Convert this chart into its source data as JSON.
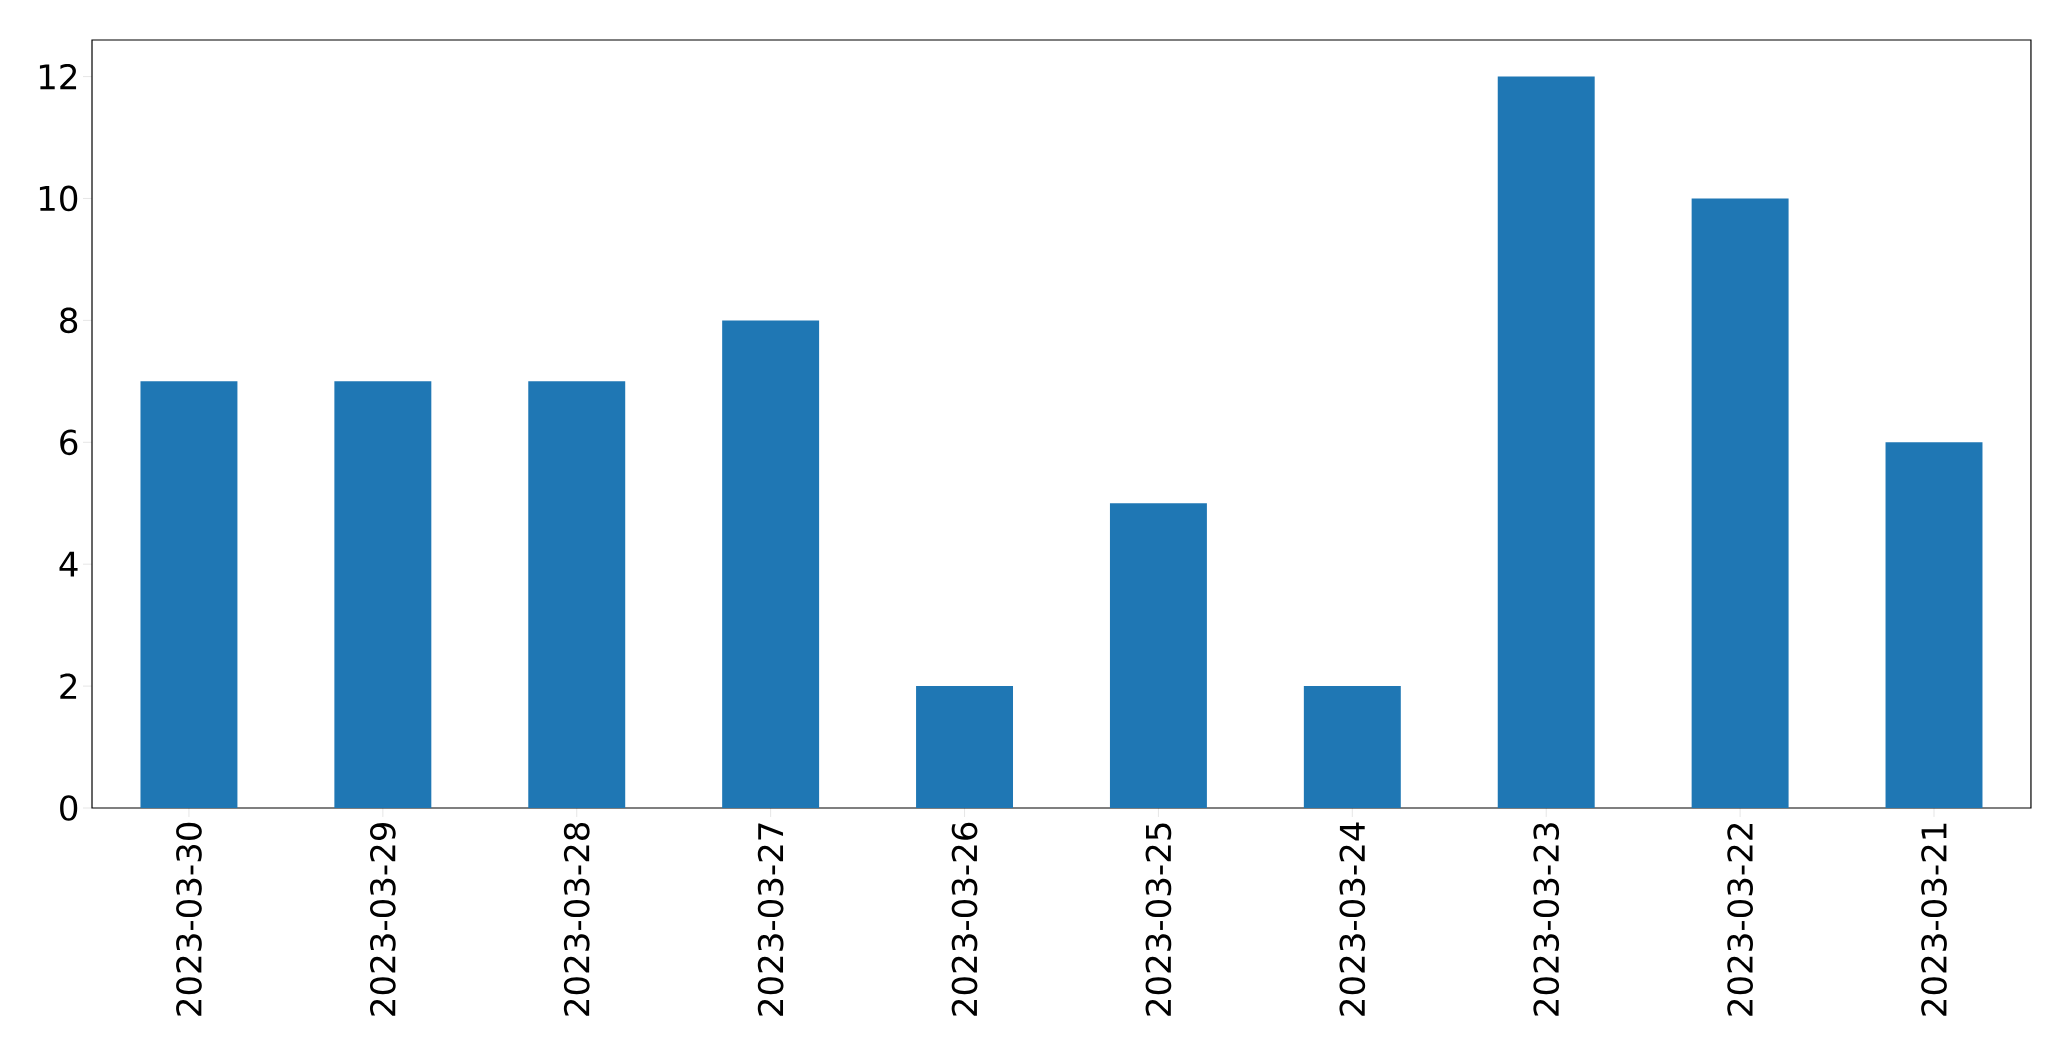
{
  "chart_data": {
    "type": "bar",
    "categories": [
      "2023-03-30",
      "2023-03-29",
      "2023-03-28",
      "2023-03-27",
      "2023-03-26",
      "2023-03-25",
      "2023-03-24",
      "2023-03-23",
      "2023-03-22",
      "2023-03-21"
    ],
    "values": [
      7,
      7,
      7,
      8,
      2,
      5,
      2,
      12,
      10,
      6
    ],
    "color": "#1f77b4",
    "ylim": [
      0,
      12.6
    ],
    "yticks": [
      0,
      2,
      4,
      6,
      8,
      10,
      12
    ],
    "grid": false
  }
}
